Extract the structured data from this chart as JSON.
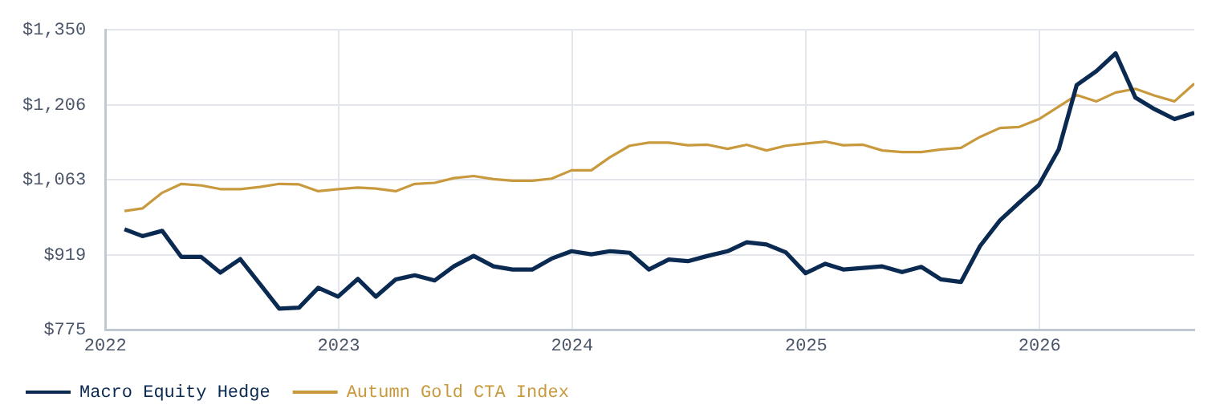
{
  "chart_data": {
    "type": "line",
    "x": [
      "2022-01-31",
      "2022-02-28",
      "2022-03-31",
      "2022-04-30",
      "2022-05-31",
      "2022-06-30",
      "2022-07-31",
      "2022-08-31",
      "2022-09-30",
      "2022-10-31",
      "2022-11-30",
      "2022-12-31",
      "2023-01-31",
      "2023-02-28",
      "2023-03-31",
      "2023-04-30",
      "2023-05-31",
      "2023-06-30",
      "2023-07-31",
      "2023-08-31",
      "2023-09-30",
      "2023-10-31",
      "2023-11-30",
      "2023-12-31",
      "2024-01-31",
      "2024-02-29",
      "2024-03-31",
      "2024-04-30",
      "2024-05-31",
      "2024-06-30",
      "2024-07-31",
      "2024-08-31",
      "2024-09-30",
      "2024-10-31",
      "2024-11-30",
      "2024-12-31",
      "2025-01-31",
      "2025-02-28",
      "2025-03-31",
      "2025-04-30",
      "2025-05-31",
      "2025-06-30",
      "2025-07-31",
      "2025-08-31",
      "2025-09-30",
      "2025-10-31",
      "2025-11-30",
      "2025-12-31",
      "2026-01-31",
      "2026-02-28",
      "2026-03-31",
      "2026-04-30",
      "2026-05-31",
      "2026-06-30",
      "2026-07-31",
      "2026-08-31"
    ],
    "series": [
      {
        "name": "Macro Equity Hedge",
        "color": "#0b2a52",
        "values": [
          968,
          955,
          965,
          915,
          915,
          885,
          911,
          863,
          816,
          818,
          856,
          839,
          873,
          839,
          872,
          880,
          870,
          897,
          917,
          897,
          891,
          891,
          912,
          926,
          920,
          926,
          923,
          891,
          910,
          907,
          917,
          926,
          943,
          939,
          924,
          884,
          902,
          891,
          894,
          897,
          886,
          896,
          872,
          867,
          936,
          985,
          1019,
          1053,
          1121,
          1244,
          1271,
          1305,
          1220,
          1198,
          1179,
          1191
        ]
      },
      {
        "name": "Autumn Gold CTA Index",
        "color": "#c8993d",
        "values": [
          1003,
          1008,
          1038,
          1055,
          1052,
          1045,
          1045,
          1049,
          1055,
          1054,
          1041,
          1045,
          1048,
          1046,
          1041,
          1055,
          1057,
          1066,
          1070,
          1064,
          1061,
          1061,
          1065,
          1081,
          1081,
          1106,
          1128,
          1134,
          1134,
          1129,
          1130,
          1122,
          1130,
          1119,
          1128,
          1132,
          1136,
          1129,
          1130,
          1119,
          1116,
          1116,
          1121,
          1124,
          1145,
          1162,
          1164,
          1179,
          1203,
          1225,
          1213,
          1230,
          1237,
          1224,
          1213,
          1247
        ]
      }
    ],
    "xlim": [
      "2022-01-01",
      "2026-08-31"
    ],
    "xticks": [
      "2022",
      "2023",
      "2024",
      "2025",
      "2026"
    ],
    "ylim": [
      775,
      1350
    ],
    "yticks": [
      {
        "value": 775,
        "label": "$775"
      },
      {
        "value": 919,
        "label": "$919"
      },
      {
        "value": 1063,
        "label": "$1,063"
      },
      {
        "value": 1206,
        "label": "$1,206"
      },
      {
        "value": 1350,
        "label": "$1,350"
      }
    ],
    "grid": true,
    "legend": "bottom",
    "marker": "none",
    "line_style": "solid"
  }
}
